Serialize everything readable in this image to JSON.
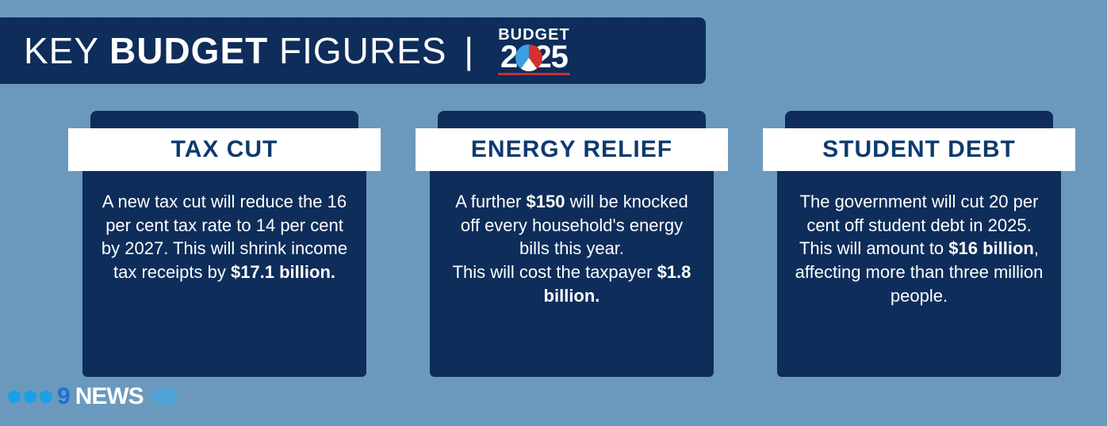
{
  "colors": {
    "page_bg": "#6a99bd",
    "dark_navy": "#0e2d5a",
    "title_navy": "#0e3a6e",
    "white": "#ffffff",
    "pie_red": "#d62f2f",
    "pie_blue": "#3aa0e0",
    "pie_white": "#ffffff",
    "nine_blue": "#1f6fd6",
    "dot1": "#1aa0e8",
    "dot2": "#1aa0e8",
    "dot3": "#1aa0e8",
    "underline_red": "#c72f33"
  },
  "header": {
    "word1": "KEY",
    "word2": "BUDGET",
    "word3": "FIGURES",
    "separator": "|",
    "logo_top": "BUDGET",
    "logo_year_a": "2",
    "logo_year_b": "25"
  },
  "cards": [
    {
      "title": "TAX CUT",
      "body_html": "A new tax cut will reduce the 16 per cent tax rate to 14 per cent by 2027. This will shrink income tax receipts by <b>$17.1 billion.</b>"
    },
    {
      "title": "ENERGY RELIEF",
      "body_html": "A further <b>$150</b> will be knocked off every household's energy bills this year.<br>This will cost the taxpayer <b>$1.8 billion.</b>"
    },
    {
      "title": "STUDENT DEBT",
      "body_html": "The government will cut 20 per cent off student debt in 2025. This will amount to <b>$16 billion</b>, affecting more than three million people."
    }
  ],
  "news": {
    "nine": "9",
    "text": "NEWS"
  }
}
